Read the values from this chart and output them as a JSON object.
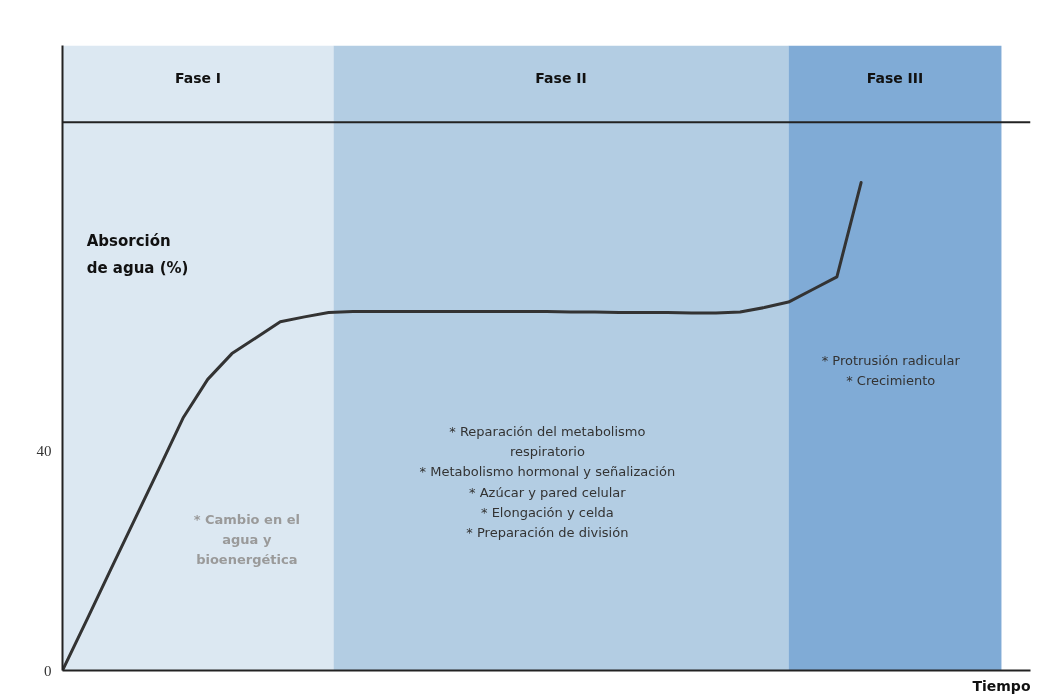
{
  "chart_data": {
    "type": "line",
    "xlabel": "Tiempo",
    "ylabel": "Absorción de agua (%)",
    "categories": [
      null,
      null,
      null,
      null,
      null,
      null,
      null,
      null,
      null,
      null,
      null,
      null,
      null,
      null,
      null,
      null,
      null,
      null,
      null,
      null,
      null,
      null,
      null,
      null,
      null,
      null,
      null,
      null,
      null,
      null,
      null,
      null,
      null,
      null,
      null,
      null,
      null,
      null,
      null,
      null,
      null
    ],
    "series": [
      {
        "color": "#333333",
        "values": [
          0,
          9.2,
          18.5,
          27.7,
          36.9,
          46.2,
          53.1,
          57.8,
          60.7,
          63.6,
          64.5,
          65.3,
          65.5,
          65.5,
          65.5,
          65.5,
          65.5,
          65.5,
          65.5,
          65.5,
          65.5,
          65.4,
          65.4,
          65.3,
          65.3,
          65.3,
          65.2,
          65.2,
          65.4,
          66.2,
          67.2,
          69.5,
          71.8,
          89,
          null,
          null,
          null,
          null,
          null,
          null,
          null
        ]
      }
    ],
    "ylim": [
      0,
      114
    ],
    "yticks": [
      0,
      40
    ],
    "grid": false,
    "marker": "none",
    "line_style": "solid",
    "tick_labels": "y",
    "ref_lines": [
      {
        "axis": "y",
        "value": 100,
        "color": "#222222"
      }
    ],
    "annotations": [
      "Fase I",
      "Fase II",
      "Fase III",
      "* Cambio en el\nagua y\nbioenergética",
      "* Reparación del metabolismo\nrespiratorio\n* Metabolismo hormonal y señalización\n* Azúcar y pared celular\n* Elongación y celda\n* Preparación de división",
      "* Protrusión radicular\n* Crecimiento"
    ]
  }
}
